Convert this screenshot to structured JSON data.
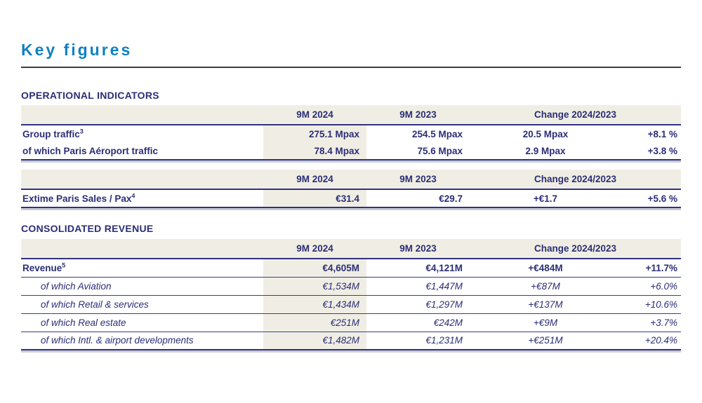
{
  "page": {
    "title": "Key figures"
  },
  "colors": {
    "title_blue": "#1180C2",
    "navy_text": "#2B2E76",
    "header_beige": "#F0EEE4"
  },
  "columns": {
    "y2024": "9M 2024",
    "y2023": "9M 2023",
    "change": "Change 2024/2023"
  },
  "operational": {
    "heading": "OPERATIONAL INDICATORS",
    "traffic_rows": [
      {
        "label": "Group traffic",
        "sup": "3",
        "v2024": "275.1 Mpax",
        "v2023": "254.5 Mpax",
        "change_abs": "20.5 Mpax",
        "change_pct": "+8.1 %"
      },
      {
        "label": "of which Paris Aéroport traffic",
        "sup": "",
        "v2024": "78.4 Mpax",
        "v2023": "75.6 Mpax",
        "change_abs": "2.9 Mpax",
        "change_pct": "+3.8 %"
      }
    ],
    "extime_row": {
      "label": "Extime Paris Sales / Pax",
      "sup": "4",
      "v2024": "€31.4",
      "v2023": "€29.7",
      "change_abs": "+€1.7",
      "change_pct": "+5.6 %"
    }
  },
  "revenue": {
    "heading": "CONSOLIDATED REVENUE",
    "rows": [
      {
        "label": "Revenue",
        "sup": "5",
        "v2024": "€4,605M",
        "v2023": "€4,121M",
        "change_abs": "+€484M",
        "change_pct": "+11.7%"
      },
      {
        "label": "of which Aviation",
        "sup": "",
        "v2024": "€1,534M",
        "v2023": "€1,447M",
        "change_abs": "+€87M",
        "change_pct": "+6.0%"
      },
      {
        "label": "of which Retail & services",
        "sup": "",
        "v2024": "€1,434M",
        "v2023": "€1,297M",
        "change_abs": "+€137M",
        "change_pct": "+10.6%"
      },
      {
        "label": "of which Real estate",
        "sup": "",
        "v2024": "€251M",
        "v2023": "€242M",
        "change_abs": "+€9M",
        "change_pct": "+3.7%"
      },
      {
        "label": "of which Intl. & airport developments",
        "sup": "",
        "v2024": "€1,482M",
        "v2023": "€1,231M",
        "change_abs": "+€251M",
        "change_pct": "+20.4%"
      }
    ]
  }
}
